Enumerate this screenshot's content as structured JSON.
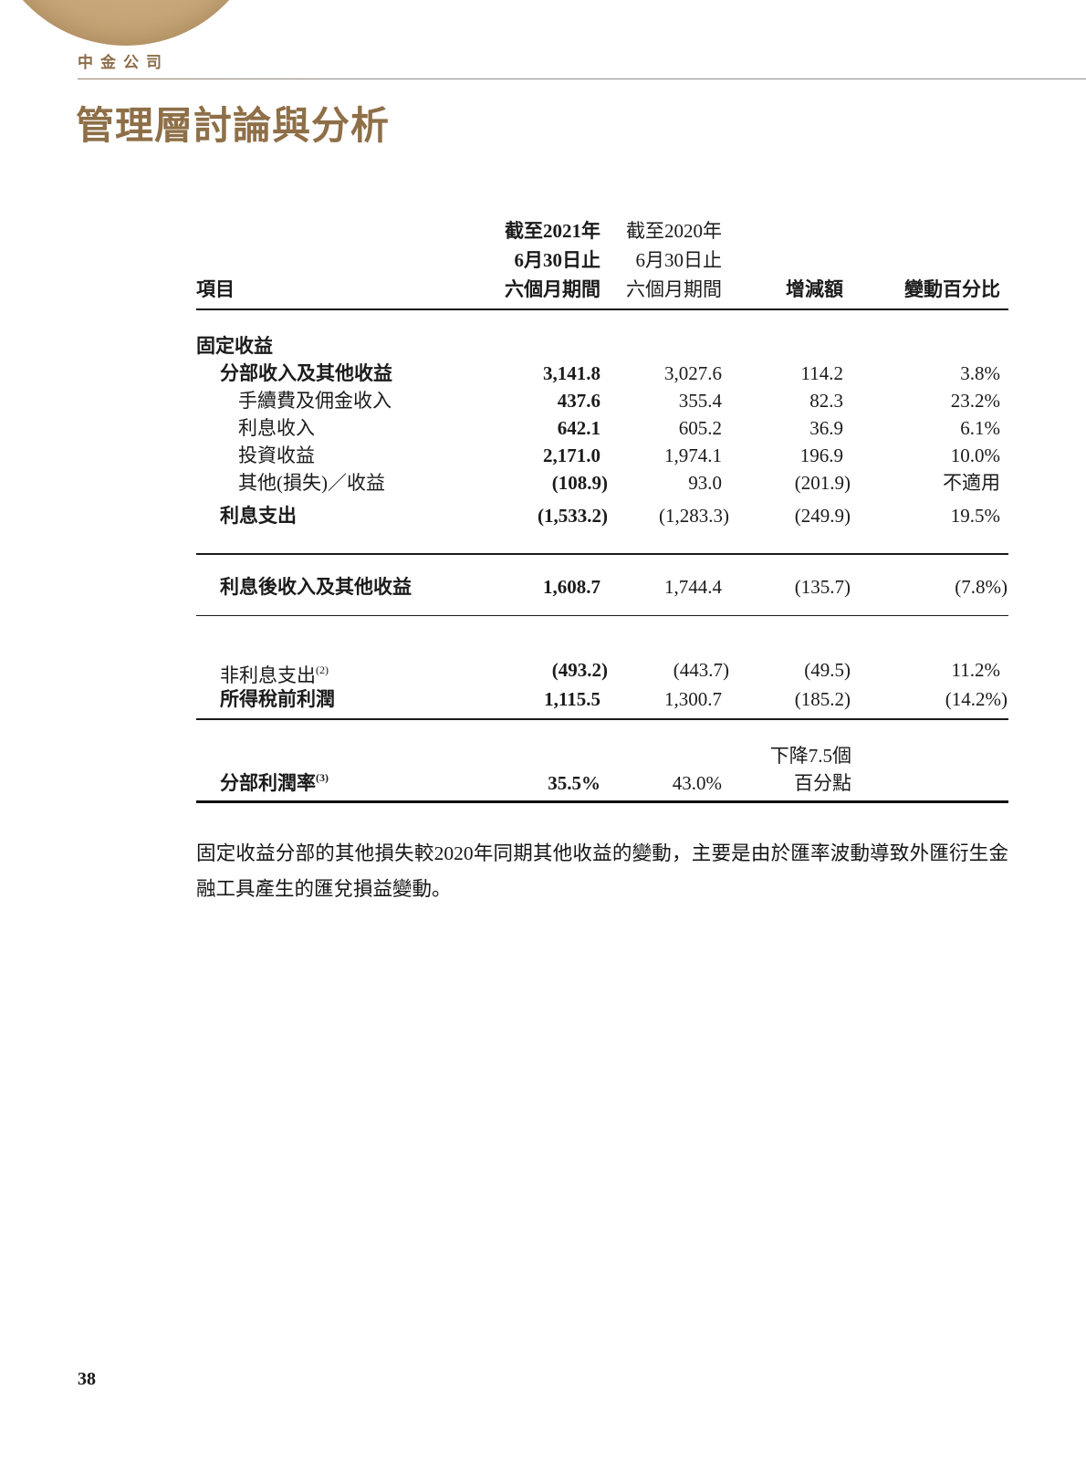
{
  "brand": {
    "name": "中金公司"
  },
  "title": "管理層討論與分析",
  "table": {
    "item_header": "項目",
    "headers": {
      "h2021": [
        "截至2021年",
        "6月30日止",
        "六個月期間"
      ],
      "h2020": [
        "截至2020年",
        "6月30日止",
        "六個月期間"
      ],
      "change": "增減額",
      "pct": "變動百分比"
    },
    "rows": [
      {
        "label": "固定收益"
      },
      {
        "label": "分部收入及其他收益",
        "v2021": "3,141.8",
        "v2020": "3,027.6",
        "change": "114.2",
        "pct": "3.8%"
      },
      {
        "label": "手續費及佣金收入",
        "v2021": "437.6",
        "v2020": "355.4",
        "change": "82.3",
        "pct": "23.2%"
      },
      {
        "label": "利息收入",
        "v2021": "642.1",
        "v2020": "605.2",
        "change": "36.9",
        "pct": "6.1%"
      },
      {
        "label": "投資收益",
        "v2021": "2,171.0",
        "v2020": "1,974.1",
        "change": "196.9",
        "pct": "10.0%"
      },
      {
        "label": "其他(損失)／收益",
        "v2021": "(108.9)",
        "v2020": "93.0",
        "change": "(201.9)",
        "pct": "不適用"
      },
      {
        "label": "利息支出",
        "v2021": "(1,533.2)",
        "v2020": "(1,283.3)",
        "change": "(249.9)",
        "pct": "19.5%"
      },
      {
        "label": "利息後收入及其他收益",
        "v2021": "1,608.7",
        "v2020": "1,744.4",
        "change": "(135.7)",
        "pct": "(7.8%)"
      },
      {
        "label": "非利息支出",
        "sup": "(2)",
        "v2021": "(493.2)",
        "v2020": "(443.7)",
        "change": "(49.5)",
        "pct": "11.2%"
      },
      {
        "label": "所得稅前利潤",
        "v2021": "1,115.5",
        "v2020": "1,300.7",
        "change": "(185.2)",
        "pct": "(14.2%)"
      },
      {
        "label": "分部利潤率",
        "sup": "(3)",
        "v2021": "35.5%",
        "v2020": "43.0%",
        "change_lines": [
          "下降7.5個",
          "百分點"
        ],
        "pct": ""
      }
    ]
  },
  "note": "固定收益分部的其他損失較2020年同期其他收益的變動，主要是由於匯率波動導致外匯衍生金融工具產生的匯兌損益變動。",
  "page_number": "38",
  "colors": {
    "accent_gold": "#8e6f48",
    "brand_gold": "#8c6d49",
    "logo_tan": "#c7a87c",
    "text": "#1b1b1b"
  }
}
